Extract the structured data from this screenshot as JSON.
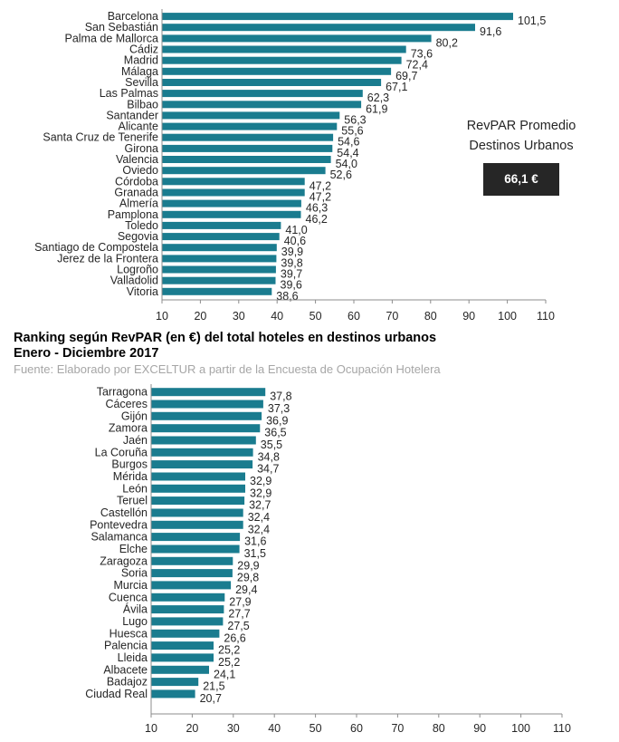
{
  "chart_data": [
    {
      "type": "bar",
      "orientation": "horizontal",
      "title": "",
      "categories": [
        "Barcelona",
        "San Sebastián",
        "Palma de Mallorca",
        "Cádiz",
        "Madrid",
        "Málaga",
        "Sevilla",
        "Las Palmas",
        "Bilbao",
        "Santander",
        "Alicante",
        "Santa Cruz de Tenerife",
        "Girona",
        "Valencia",
        "Oviedo",
        "Córdoba",
        "Granada",
        "Almería",
        "Pamplona",
        "Toledo",
        "Segovia",
        "Santiago de Compostela",
        "Jerez de la Frontera",
        "Logroño",
        "Valladolid",
        "Vitoria"
      ],
      "values": [
        101.5,
        91.6,
        80.2,
        73.6,
        72.4,
        69.7,
        67.1,
        62.3,
        61.9,
        56.3,
        55.6,
        54.6,
        54.4,
        54.0,
        52.6,
        47.2,
        47.2,
        46.3,
        46.2,
        41.0,
        40.6,
        39.9,
        39.8,
        39.7,
        39.6,
        38.6
      ],
      "value_labels": [
        "101,5",
        "91,6",
        "80,2",
        "73,6",
        "72,4",
        "69,7",
        "67,1",
        "62,3",
        "61,9",
        "56,3",
        "55,6",
        "54,6",
        "54,4",
        "54,0",
        "52,6",
        "47,2",
        "47,2",
        "46,3",
        "46,2",
        "41,0",
        "40,6",
        "39,9",
        "39,8",
        "39,7",
        "39,6",
        "38,6"
      ],
      "xlim": [
        10,
        110
      ],
      "xticks": [
        "10",
        "20",
        "30",
        "40",
        "50",
        "60",
        "70",
        "80",
        "90",
        "100",
        "110"
      ],
      "grid": false
    },
    {
      "type": "bar",
      "orientation": "horizontal",
      "title": "",
      "categories": [
        "Tarragona",
        "Cáceres",
        "Gijón",
        "Zamora",
        "Jaén",
        "La Coruña",
        "Burgos",
        "Mérida",
        "León",
        "Teruel",
        "Castellón",
        "Pontevedra",
        "Salamanca",
        "Elche",
        "Zaragoza",
        "Soria",
        "Murcia",
        "Cuenca",
        "Ávila",
        "Lugo",
        "Huesca",
        "Palencia",
        "Lleida",
        "Albacete",
        "Badajoz",
        "Ciudad Real"
      ],
      "values": [
        37.8,
        37.3,
        36.9,
        36.5,
        35.5,
        34.8,
        34.7,
        32.9,
        32.9,
        32.7,
        32.4,
        32.4,
        31.6,
        31.5,
        29.9,
        29.8,
        29.4,
        27.9,
        27.7,
        27.5,
        26.6,
        25.2,
        25.2,
        24.1,
        21.5,
        20.7
      ],
      "value_labels": [
        "37,8",
        "37,3",
        "36,9",
        "36,5",
        "35,5",
        "34,8",
        "34,7",
        "32,9",
        "32,9",
        "32,7",
        "32,4",
        "32,4",
        "31,6",
        "31,5",
        "29,9",
        "29,8",
        "29,4",
        "27,9",
        "27,7",
        "27,5",
        "26,6",
        "25,2",
        "25,2",
        "24,1",
        "21,5",
        "20,7"
      ],
      "xlim": [
        10,
        110
      ],
      "xticks": [
        "10",
        "20",
        "30",
        "40",
        "50",
        "60",
        "70",
        "80",
        "90",
        "100",
        "110"
      ],
      "grid": false
    }
  ],
  "caption": {
    "title_line1": "Ranking según RevPAR (en €) del total hoteles en destinos urbanos",
    "title_line2": "Enero - Diciembre 2017",
    "source": "Fuente: Elaborado por EXCELTUR a partir de la Encuesta de Ocupación Hotelera"
  },
  "average": {
    "label_line1": "RevPAR Promedio",
    "label_line2": "Destinos Urbanos",
    "value": "66,1 €"
  },
  "colors": {
    "bar": "#1a7c8f",
    "badge": "#262626"
  }
}
